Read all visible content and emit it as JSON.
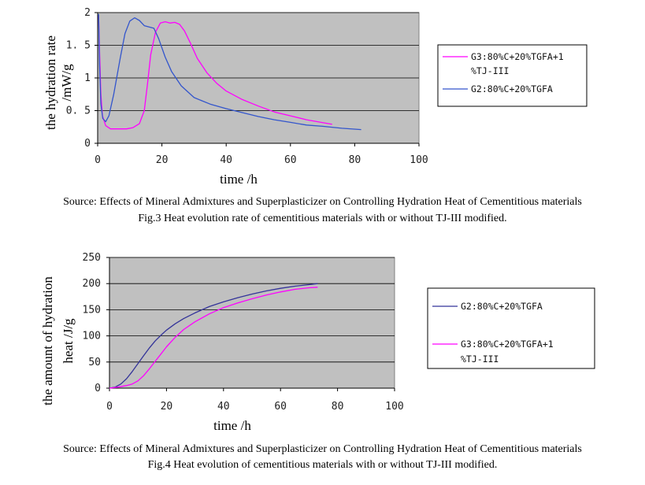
{
  "chart_data": [
    {
      "type": "line",
      "ylabel_line1": "the hydration rate",
      "ylabel_line2": "/mW/g",
      "xlabel": "time /h",
      "xlim": [
        0,
        100
      ],
      "ylim": [
        0,
        2
      ],
      "xticks": [
        "0",
        "20",
        "40",
        "60",
        "80",
        "100"
      ],
      "yticks": [
        "0",
        "0.5",
        "1",
        "1.5",
        "2"
      ],
      "ytick_labels": [
        "0",
        "0. 5",
        "1",
        "1. 5",
        "2"
      ],
      "grid": true,
      "legend_position": "right",
      "caption_source": "Source: Effects of Mineral Admixtures and Superplasticizer on Controlling Hydration Heat of Cementitious materials",
      "caption_fig": "Fig.3 Heat evolution rate of cementitious materials with or without TJ-III modified.",
      "series": [
        {
          "name": "G3:80%C+20%TGFA+1%TJ-III",
          "legend_line1": "G3:80%C+20%TGFA+1",
          "legend_line2": "%TJ-III",
          "color": "#ff00ff",
          "points": [
            [
              0.3,
              1.95
            ],
            [
              0.6,
              1.4
            ],
            [
              1,
              0.75
            ],
            [
              1.5,
              0.42
            ],
            [
              2.5,
              0.27
            ],
            [
              4,
              0.22
            ],
            [
              6,
              0.22
            ],
            [
              9,
              0.22
            ],
            [
              11,
              0.24
            ],
            [
              13,
              0.3
            ],
            [
              14.5,
              0.5
            ],
            [
              15.5,
              0.9
            ],
            [
              16.5,
              1.35
            ],
            [
              18,
              1.7
            ],
            [
              19.5,
              1.84
            ],
            [
              21,
              1.86
            ],
            [
              22.5,
              1.84
            ],
            [
              24,
              1.85
            ],
            [
              25.5,
              1.82
            ],
            [
              27,
              1.72
            ],
            [
              29,
              1.52
            ],
            [
              31,
              1.3
            ],
            [
              34,
              1.08
            ],
            [
              37,
              0.92
            ],
            [
              40,
              0.8
            ],
            [
              45,
              0.67
            ],
            [
              50,
              0.57
            ],
            [
              55,
              0.48
            ],
            [
              60,
              0.42
            ],
            [
              65,
              0.36
            ],
            [
              73,
              0.29
            ]
          ]
        },
        {
          "name": "G2:80%C+20%TGFA",
          "legend_line1": "G2:80%C+20%TGFA",
          "color": "#3355cc",
          "points": [
            [
              0.3,
              1.98
            ],
            [
              0.6,
              1.2
            ],
            [
              1,
              0.6
            ],
            [
              1.6,
              0.38
            ],
            [
              2.5,
              0.33
            ],
            [
              3.5,
              0.42
            ],
            [
              5,
              0.75
            ],
            [
              7,
              1.3
            ],
            [
              8.5,
              1.68
            ],
            [
              10,
              1.87
            ],
            [
              11.5,
              1.92
            ],
            [
              13,
              1.88
            ],
            [
              14.5,
              1.8
            ],
            [
              16,
              1.78
            ],
            [
              17.5,
              1.76
            ],
            [
              19,
              1.6
            ],
            [
              21,
              1.32
            ],
            [
              23,
              1.1
            ],
            [
              26,
              0.88
            ],
            [
              30,
              0.7
            ],
            [
              35,
              0.6
            ],
            [
              40,
              0.53
            ],
            [
              45,
              0.47
            ],
            [
              50,
              0.41
            ],
            [
              55,
              0.36
            ],
            [
              60,
              0.32
            ],
            [
              65,
              0.28
            ],
            [
              70,
              0.26
            ],
            [
              76,
              0.23
            ],
            [
              82,
              0.21
            ]
          ]
        }
      ]
    },
    {
      "type": "line",
      "ylabel_line1": "the amount of hydration",
      "ylabel_line2": "heat /J/g",
      "xlabel": "time /h",
      "xlim": [
        0,
        100
      ],
      "ylim": [
        0,
        250
      ],
      "xticks": [
        "0",
        "20",
        "40",
        "60",
        "80",
        "100"
      ],
      "yticks": [
        "0",
        "50",
        "100",
        "150",
        "200",
        "250"
      ],
      "ytick_labels": [
        "0",
        "50",
        "100",
        "150",
        "200",
        "250"
      ],
      "grid": true,
      "legend_position": "right",
      "caption_source": "Source: Effects of Mineral Admixtures and Superplasticizer on Controlling Hydration Heat of Cementitious materials",
      "caption_fig": "Fig.4 Heat evolution of cementitious materials with or without TJ-III modified.",
      "series": [
        {
          "name": "G2:80%C+20%TGFA",
          "legend_line1": "G2:80%C+20%TGFA",
          "color": "#333399",
          "points": [
            [
              0,
              0
            ],
            [
              2,
              2
            ],
            [
              4,
              8
            ],
            [
              6,
              18
            ],
            [
              8,
              32
            ],
            [
              10,
              47
            ],
            [
              12,
              62
            ],
            [
              14,
              77
            ],
            [
              16,
              90
            ],
            [
              18,
              101
            ],
            [
              20,
              111
            ],
            [
              23,
              123
            ],
            [
              26,
              133
            ],
            [
              30,
              144
            ],
            [
              35,
              156
            ],
            [
              40,
              165
            ],
            [
              45,
              173
            ],
            [
              50,
              180
            ],
            [
              55,
              186
            ],
            [
              60,
              191
            ],
            [
              65,
              195
            ],
            [
              70,
              198
            ],
            [
              73,
              200
            ]
          ]
        },
        {
          "name": "G3:80%C+20%TGFA+1%TJ-III",
          "legend_line1": "G3:80%C+20%TGFA+1",
          "legend_line2": "%TJ-III",
          "color": "#ff00ff",
          "points": [
            [
              0,
              0
            ],
            [
              3,
              2
            ],
            [
              6,
              5
            ],
            [
              8,
              8
            ],
            [
              10,
              14
            ],
            [
              12,
              24
            ],
            [
              14,
              37
            ],
            [
              16,
              51
            ],
            [
              18,
              65
            ],
            [
              20,
              79
            ],
            [
              23,
              97
            ],
            [
              26,
              112
            ],
            [
              30,
              127
            ],
            [
              35,
              142
            ],
            [
              40,
              154
            ],
            [
              45,
              163
            ],
            [
              50,
              171
            ],
            [
              55,
              178
            ],
            [
              60,
              184
            ],
            [
              65,
              189
            ],
            [
              70,
              192
            ],
            [
              73,
              193
            ]
          ]
        }
      ]
    }
  ]
}
